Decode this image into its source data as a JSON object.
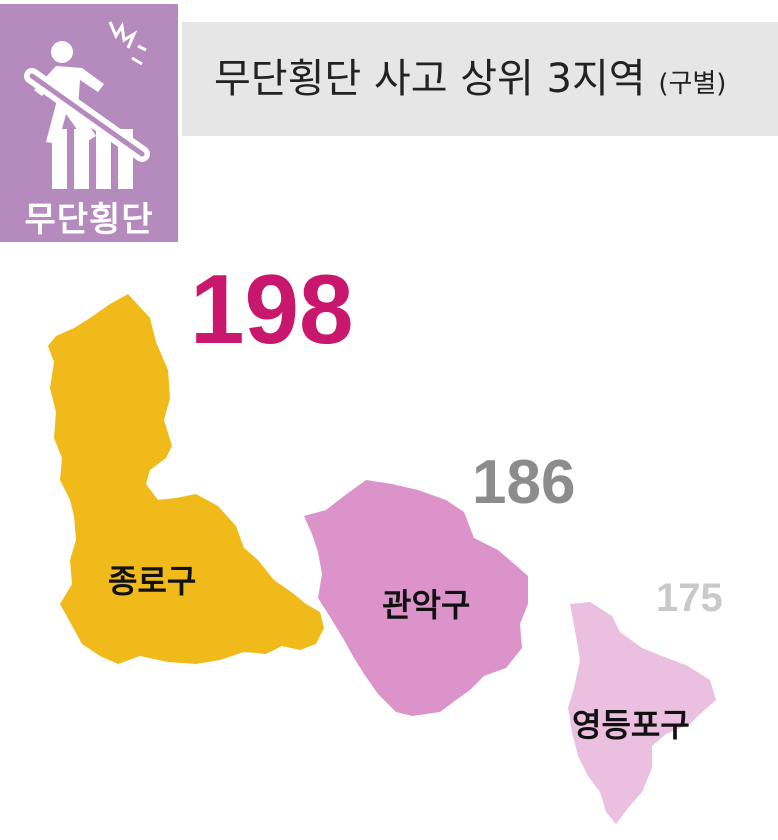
{
  "header": {
    "icon_label": "무단횡단",
    "title": "무단횡단 사고 상위 3지역",
    "title_suffix": "(구별)"
  },
  "colors": {
    "icon_bg": "#b58bbd",
    "title_bg": "#e6e6e6",
    "rank1_value": "#c8176c",
    "rank2_value": "#8c8c8c",
    "rank3_value": "#c9c9c9",
    "jongno_fill": "#f0bb1a",
    "gwanak_fill": "#dc93c9",
    "yeongdeungpo_fill": "#ebbfdf"
  },
  "districts": [
    {
      "name": "종로구",
      "value": "198"
    },
    {
      "name": "관악구",
      "value": "186"
    },
    {
      "name": "영등포구",
      "value": "175"
    }
  ]
}
